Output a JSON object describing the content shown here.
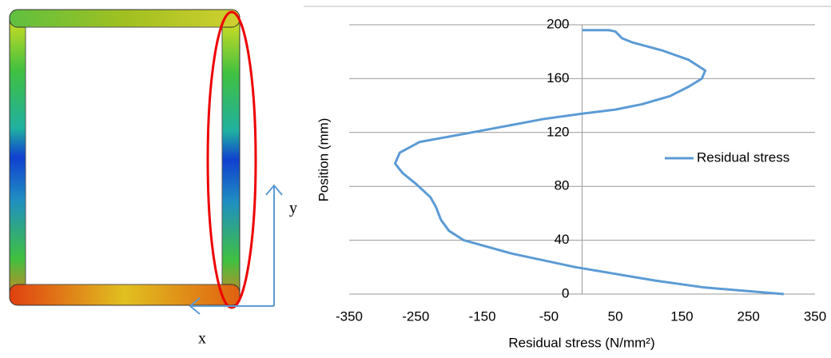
{
  "figure_labels": [
    "x",
    "y"
  ],
  "chart_data": {
    "type": "line",
    "xlabel": "Residual stress (N/mm²)",
    "ylabel": "Position (mm)",
    "series": [
      {
        "name": "Residual stress",
        "color": "#5b9bd5",
        "x": [
          0,
          40,
          50,
          60,
          75,
          120,
          160,
          185,
          180,
          160,
          132,
          90,
          50,
          0,
          -58,
          -166,
          -244,
          -274,
          -281,
          -270,
          -250,
          -228,
          -220,
          -212,
          -200,
          -178,
          -105,
          -10,
          110,
          182,
          303
        ],
        "values": [
          196,
          196,
          195,
          190,
          187,
          181,
          174,
          166,
          160,
          154,
          147,
          141,
          137,
          134,
          130,
          120,
          113,
          105,
          97,
          90,
          82,
          72,
          65,
          55,
          47,
          40,
          30,
          20,
          10,
          5,
          0
        ]
      }
    ],
    "xlim": [
      -350,
      350
    ],
    "xticks": [
      -350,
      -250,
      -150,
      -50,
      50,
      150,
      250,
      350
    ],
    "ylim": [
      0,
      200
    ],
    "yticks": [
      0,
      40,
      80,
      120,
      160,
      200
    ],
    "grid": true,
    "legend": "right"
  }
}
